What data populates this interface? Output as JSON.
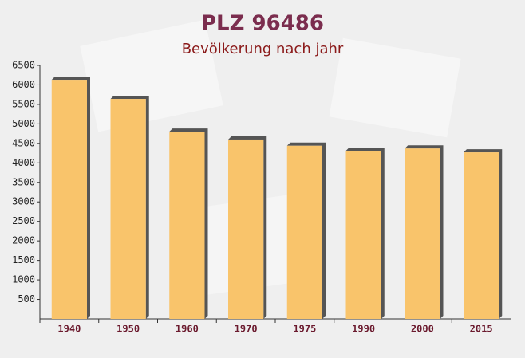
{
  "chart_data": {
    "type": "bar",
    "title": "PLZ 96486",
    "subtitle": "Bevölkerung nach jahr",
    "categories": [
      "1940",
      "1950",
      "1960",
      "1970",
      "1975",
      "1990",
      "2000",
      "2015"
    ],
    "values": [
      6130,
      5640,
      4800,
      4600,
      4440,
      4310,
      4370,
      4270
    ],
    "color": "#f9c46b",
    "ylim": [
      0,
      6500
    ],
    "yticks": [
      500,
      1000,
      1500,
      2000,
      2500,
      3000,
      3500,
      4000,
      4500,
      5000,
      5500,
      6000,
      6500
    ],
    "grid": false
  }
}
